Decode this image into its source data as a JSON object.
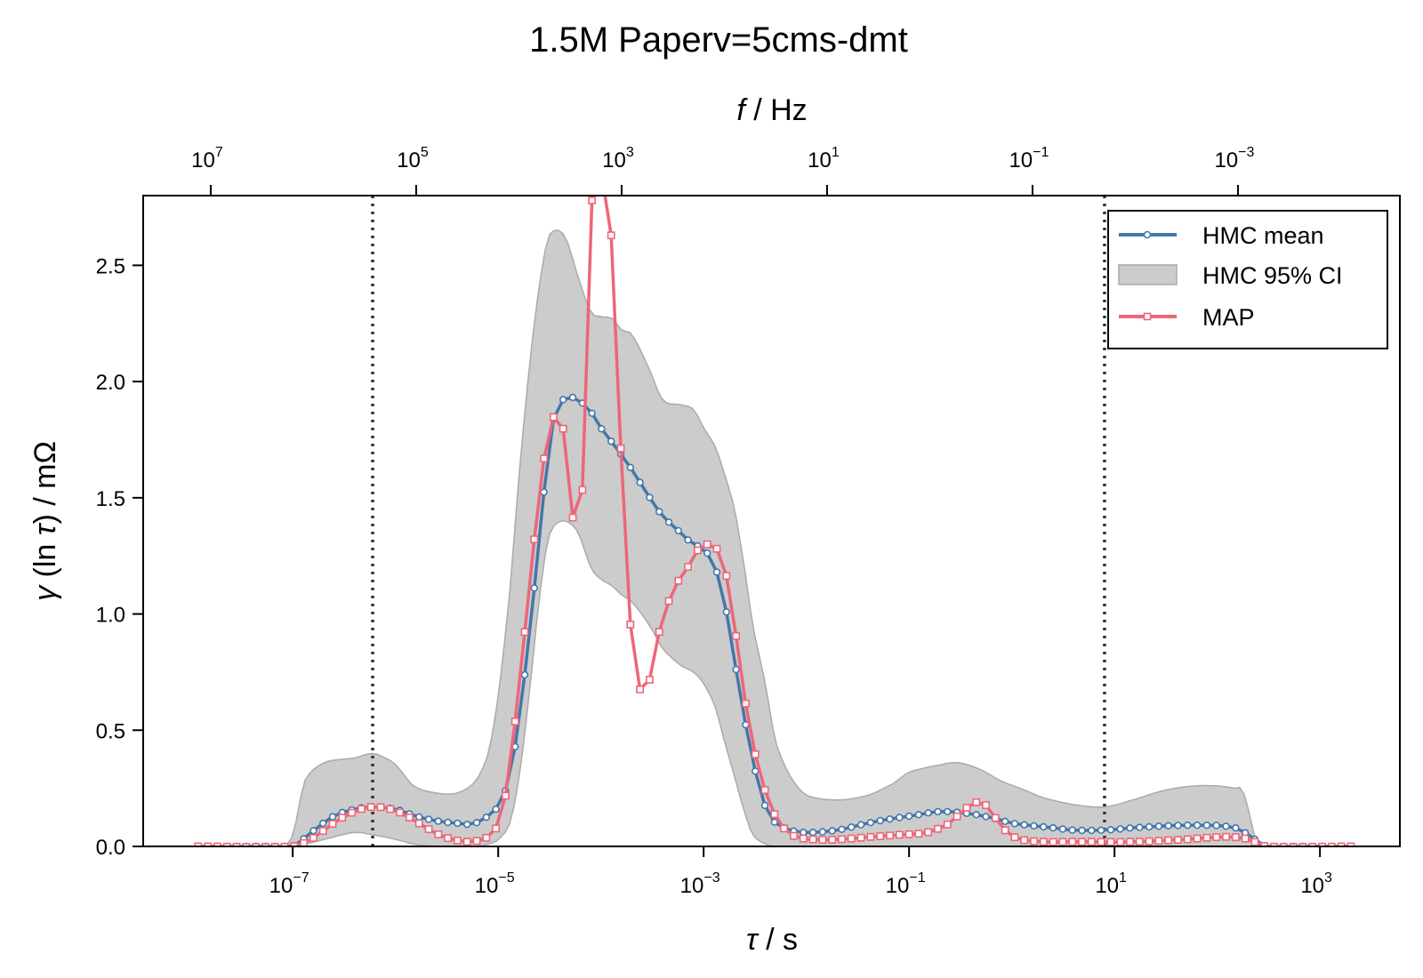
{
  "chart_data": {
    "type": "line",
    "title": "1.5M Paperv=5cms-dmt",
    "xlabel_symbol": "τ",
    "xlabel_unit": " / s",
    "top_xlabel_symbol": "f",
    "top_xlabel_unit": " / Hz",
    "ylabel_symbol": "γ",
    "ylabel_mid": " (ln ",
    "ylabel_tail": ") / mΩ",
    "x_scale": "log",
    "xlim": [
      3.5e-09,
      6000
    ],
    "ylim": [
      0,
      2.8
    ],
    "yticks": [
      "0.0",
      "0.5",
      "1.0",
      "1.5",
      "2.0",
      "2.5"
    ],
    "xtick_exponents": [
      "−7",
      "−5",
      "−3",
      "−1",
      "1",
      "3"
    ],
    "top_xtick_exponents": [
      "7",
      "5",
      "3",
      "1",
      "−1",
      "−3"
    ],
    "vlines_tau": [
      6e-07,
      8
    ],
    "legend_position": "top-right",
    "colors": {
      "hmc_mean": "#4477aa",
      "ci_fill": "#cccccc",
      "ci_edge": "#aaaaaa",
      "map": "#ee6677",
      "vline": "#333333"
    },
    "series": [
      {
        "name": "HMC mean",
        "key": "hmc_mean",
        "tau": [
          1.2e-08,
          1e-07,
          1.5e-07,
          2.5e-07,
          4e-07,
          6e-07,
          1e-06,
          1.6e-06,
          2.5e-06,
          4e-06,
          6e-06,
          1e-05,
          1.3e-05,
          1.6e-05,
          2e-05,
          2.5e-05,
          3e-05,
          3.5e-05,
          4.5e-05,
          6e-05,
          8e-05,
          0.0001,
          0.00015,
          0.0002,
          0.0003,
          0.0004,
          0.0006,
          0.0008,
          0.001,
          0.0013,
          0.0016,
          0.002,
          0.0025,
          0.0032,
          0.004,
          0.005,
          0.007,
          0.01,
          0.02,
          0.04,
          0.07,
          0.1,
          0.2,
          0.4,
          0.7,
          1,
          1.5,
          2.5,
          4,
          8,
          15,
          40,
          100,
          150,
          200,
          300,
          2000
        ],
        "y": [
          0,
          0,
          0.06,
          0.13,
          0.16,
          0.17,
          0.16,
          0.13,
          0.11,
          0.1,
          0.1,
          0.17,
          0.3,
          0.55,
          0.9,
          1.3,
          1.65,
          1.85,
          1.93,
          1.92,
          1.87,
          1.8,
          1.7,
          1.62,
          1.5,
          1.42,
          1.35,
          1.3,
          1.28,
          1.2,
          1.05,
          0.8,
          0.55,
          0.32,
          0.17,
          0.1,
          0.07,
          0.06,
          0.07,
          0.1,
          0.12,
          0.13,
          0.15,
          0.14,
          0.12,
          0.1,
          0.09,
          0.08,
          0.07,
          0.07,
          0.08,
          0.09,
          0.09,
          0.08,
          0.05,
          0,
          0
        ]
      },
      {
        "name": "HMC 95% CI",
        "key": "ci",
        "tau": [
          1.2e-08,
          8e-08,
          1e-07,
          1.3e-07,
          2e-07,
          4e-07,
          6e-07,
          8e-07,
          1e-06,
          1.5e-06,
          2.5e-06,
          4e-06,
          6e-06,
          8e-06,
          1e-05,
          1.3e-05,
          1.6e-05,
          2e-05,
          2.5e-05,
          3e-05,
          3.5e-05,
          4.5e-05,
          6e-05,
          8e-05,
          0.0001,
          0.00013,
          0.00016,
          0.0002,
          0.0003,
          0.0004,
          0.0006,
          0.0008,
          0.001,
          0.0013,
          0.0016,
          0.002,
          0.0025,
          0.003,
          0.004,
          0.005,
          0.007,
          0.01,
          0.02,
          0.04,
          0.07,
          0.1,
          0.2,
          0.3,
          0.5,
          0.8,
          1.2,
          2,
          4,
          8,
          15,
          30,
          60,
          100,
          150,
          180,
          250,
          2000
        ],
        "upper": [
          0,
          0,
          0.05,
          0.28,
          0.36,
          0.38,
          0.4,
          0.38,
          0.35,
          0.26,
          0.23,
          0.23,
          0.28,
          0.4,
          0.65,
          1.1,
          1.6,
          2.05,
          2.4,
          2.6,
          2.65,
          2.62,
          2.45,
          2.3,
          2.28,
          2.27,
          2.22,
          2.2,
          2.05,
          1.92,
          1.9,
          1.88,
          1.8,
          1.72,
          1.6,
          1.45,
          1.2,
          0.95,
          0.7,
          0.45,
          0.3,
          0.22,
          0.2,
          0.22,
          0.27,
          0.32,
          0.35,
          0.36,
          0.33,
          0.28,
          0.25,
          0.21,
          0.18,
          0.17,
          0.2,
          0.24,
          0.26,
          0.26,
          0.25,
          0.23,
          0,
          0
        ],
        "lower": [
          0,
          0,
          0,
          0.01,
          0.03,
          0.06,
          0.05,
          0.04,
          0.03,
          0.01,
          0.0,
          0.0,
          0.0,
          0.01,
          0.03,
          0.1,
          0.3,
          0.65,
          1.05,
          1.3,
          1.38,
          1.4,
          1.35,
          1.2,
          1.15,
          1.12,
          1.08,
          1.05,
          0.95,
          0.85,
          0.78,
          0.75,
          0.7,
          0.6,
          0.45,
          0.3,
          0.15,
          0.05,
          0.01,
          0.0,
          0,
          0,
          0,
          0,
          0,
          0,
          0,
          0,
          0,
          0,
          0,
          0,
          0,
          0,
          0,
          0,
          0,
          0,
          0,
          0,
          0,
          0
        ]
      },
      {
        "name": "MAP",
        "key": "map",
        "tau": [
          1.2e-08,
          1e-07,
          1.5e-07,
          2.5e-07,
          4e-07,
          6e-07,
          9e-07,
          1.3e-06,
          2e-06,
          3e-06,
          5e-06,
          7e-06,
          9e-06,
          1.1e-05,
          1.3e-05,
          1.6e-05,
          2e-05,
          2.5e-05,
          3e-05,
          3.5e-05,
          4e-05,
          4.5e-05,
          5.2e-05,
          6e-05,
          7e-05,
          8.5e-05,
          0.0001,
          0.000115,
          0.000135,
          0.00016,
          0.0002,
          0.00025,
          0.0003,
          0.00033,
          0.00038,
          0.0005,
          0.0007,
          0.0009,
          0.0011,
          0.00135,
          0.0016,
          0.002,
          0.0025,
          0.003,
          0.0036,
          0.0045,
          0.006,
          0.008,
          0.012,
          0.02,
          0.04,
          0.08,
          0.15,
          0.25,
          0.35,
          0.45,
          0.55,
          0.7,
          0.9,
          1.2,
          2,
          5,
          15,
          50,
          100,
          150,
          200,
          300,
          2000
        ],
        "y": [
          0,
          0,
          0.03,
          0.1,
          0.15,
          0.17,
          0.16,
          0.13,
          0.08,
          0.04,
          0.02,
          0.03,
          0.06,
          0.15,
          0.35,
          0.7,
          1.1,
          1.5,
          1.75,
          1.85,
          1.83,
          1.75,
          1.5,
          1.0,
          1.96,
          2.9,
          2.9,
          2.8,
          2.42,
          1.6,
          0.88,
          0.66,
          0.72,
          0.82,
          0.95,
          1.1,
          1.2,
          1.28,
          1.3,
          1.28,
          1.2,
          0.95,
          0.65,
          0.45,
          0.3,
          0.17,
          0.08,
          0.04,
          0.03,
          0.03,
          0.04,
          0.05,
          0.06,
          0.1,
          0.16,
          0.19,
          0.18,
          0.12,
          0.06,
          0.03,
          0.02,
          0.02,
          0.02,
          0.03,
          0.04,
          0.04,
          0.03,
          0,
          0
        ]
      }
    ]
  }
}
